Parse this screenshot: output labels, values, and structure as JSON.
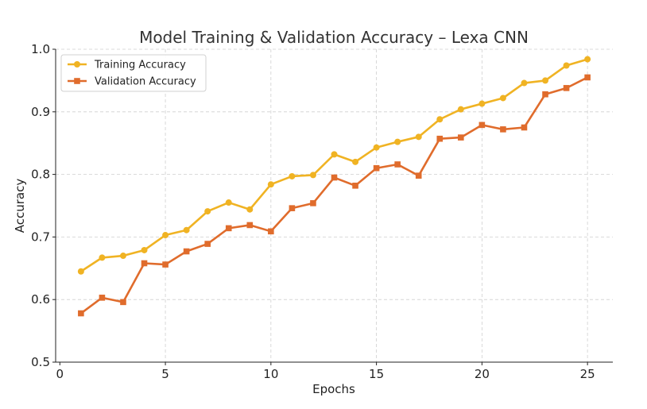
{
  "chart_data": {
    "type": "line",
    "title": "Model Training & Validation Accuracy – Lexa CNN",
    "xlabel": "Epochs",
    "ylabel": "Accuracy",
    "xlim": [
      -0.2,
      26.2
    ],
    "ylim": [
      0.5,
      1.0
    ],
    "xticks": [
      0,
      5,
      10,
      15,
      20,
      25
    ],
    "yticks": [
      0.5,
      0.6,
      0.7,
      0.8,
      0.9,
      1.0
    ],
    "xtick_labels": [
      "0",
      "5",
      "10",
      "15",
      "20",
      "25"
    ],
    "ytick_labels": [
      "0.5",
      "0.6",
      "0.7",
      "0.8",
      "0.9",
      "1.0"
    ],
    "grid": true,
    "legend_position": "top-left",
    "x": [
      1,
      2,
      3,
      4,
      5,
      6,
      7,
      8,
      9,
      10,
      11,
      12,
      13,
      14,
      15,
      16,
      17,
      18,
      19,
      20,
      21,
      22,
      23,
      24,
      25
    ],
    "series": [
      {
        "name": "Training Accuracy",
        "color": "#f0b323",
        "marker": "circle",
        "values": [
          0.645,
          0.667,
          0.67,
          0.679,
          0.703,
          0.711,
          0.741,
          0.755,
          0.744,
          0.784,
          0.797,
          0.799,
          0.832,
          0.82,
          0.843,
          0.852,
          0.86,
          0.888,
          0.904,
          0.913,
          0.922,
          0.946,
          0.95,
          0.974,
          0.984
        ]
      },
      {
        "name": "Validation Accuracy",
        "color": "#e06c2c",
        "marker": "square",
        "values": [
          0.578,
          0.603,
          0.596,
          0.658,
          0.656,
          0.677,
          0.689,
          0.714,
          0.719,
          0.709,
          0.746,
          0.754,
          0.795,
          0.782,
          0.81,
          0.816,
          0.798,
          0.857,
          0.859,
          0.879,
          0.872,
          0.875,
          0.928,
          0.938,
          0.955
        ]
      }
    ]
  }
}
